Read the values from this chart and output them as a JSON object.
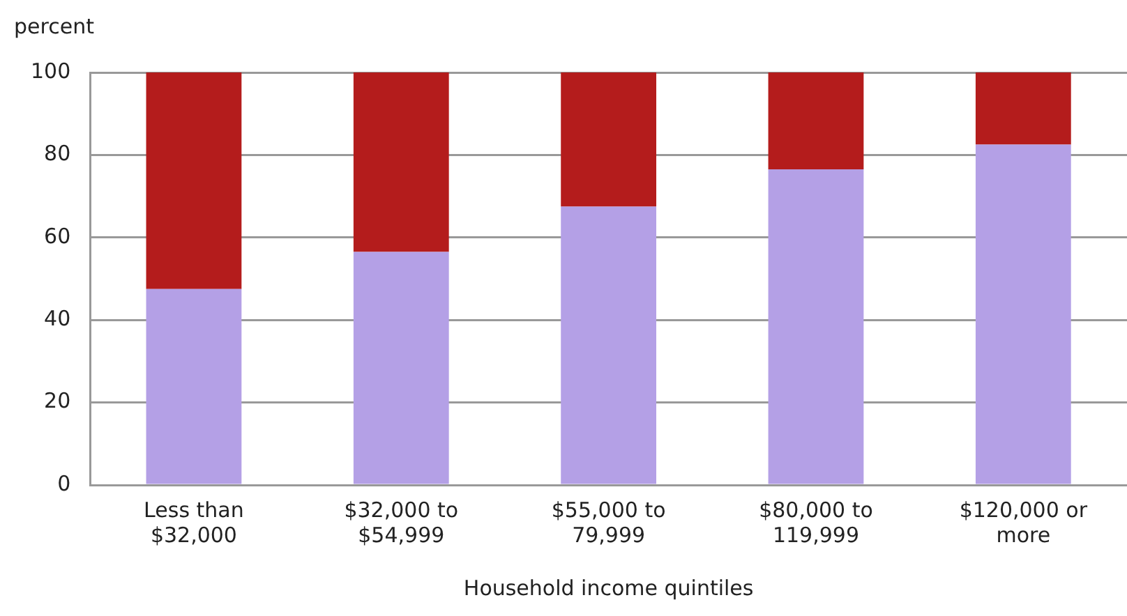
{
  "chart_data": {
    "type": "bar",
    "ylabel": "percent",
    "xlabel": "Household income quintiles",
    "categories": [
      "Less than $32,000",
      "$32,000 to $54,999",
      "$55,000 to 79,999",
      "$80,000 to 119,999",
      "$120,000 or more"
    ],
    "stacked": true,
    "series": [
      {
        "color": "#b4a0e6",
        "values": [
          47.5,
          56.5,
          67.5,
          76.5,
          82.5
        ]
      },
      {
        "color": "#b41c1c",
        "values": [
          52.5,
          43.5,
          32.5,
          23.5,
          17.5
        ]
      }
    ],
    "ylim": [
      0,
      100
    ],
    "yticks": [
      0,
      20,
      40,
      60,
      80,
      100
    ],
    "grid": "y",
    "legend": false
  }
}
